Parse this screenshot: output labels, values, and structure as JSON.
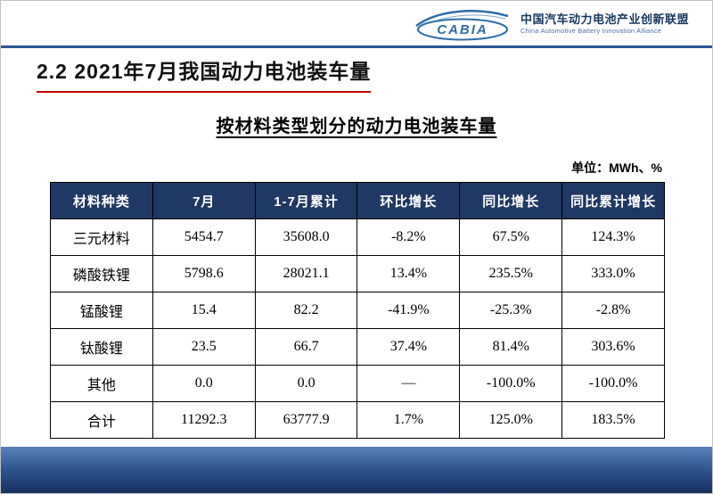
{
  "header": {
    "logo_text": "CABIA",
    "org_cn": "中国汽车动力电池产业创新联盟",
    "org_en": "China Automotive Battery Innovation Alliance"
  },
  "title": "2.2  2021年7月我国动力电池装车量",
  "subtitle": "按材料类型划分的动力电池装车量",
  "unit_label": "单位：MWh、%",
  "chart_data": {
    "type": "table",
    "title": "按材料类型划分的动力电池装车量",
    "unit": "MWh、%",
    "columns": [
      "材料种类",
      "7月",
      "1-7月累计",
      "环比增长",
      "同比增长",
      "同比累计增长"
    ],
    "rows": [
      [
        "三元材料",
        "5454.7",
        "35608.0",
        "-8.2%",
        "67.5%",
        "124.3%"
      ],
      [
        "磷酸铁锂",
        "5798.6",
        "28021.1",
        "13.4%",
        "235.5%",
        "333.0%"
      ],
      [
        "锰酸锂",
        "15.4",
        "82.2",
        "-41.9%",
        "-25.3%",
        "-2.8%"
      ],
      [
        "钛酸锂",
        "23.5",
        "66.7",
        "37.4%",
        "81.4%",
        "303.6%"
      ],
      [
        "其他",
        "0.0",
        "0.0",
        "—",
        "-100.0%",
        "-100.0%"
      ],
      [
        "合计",
        "11292.3",
        "63777.9",
        "1.7%",
        "125.0%",
        "183.5%"
      ]
    ]
  },
  "colors": {
    "table_header_bg": "#1F3864",
    "title_underline_red": "#C00000",
    "brand_blue": "#2E6DA8",
    "header_rule_blue": "#2B5797",
    "footer_gradient_top": "#5b80bb",
    "footer_gradient_bottom": "#17315f"
  }
}
